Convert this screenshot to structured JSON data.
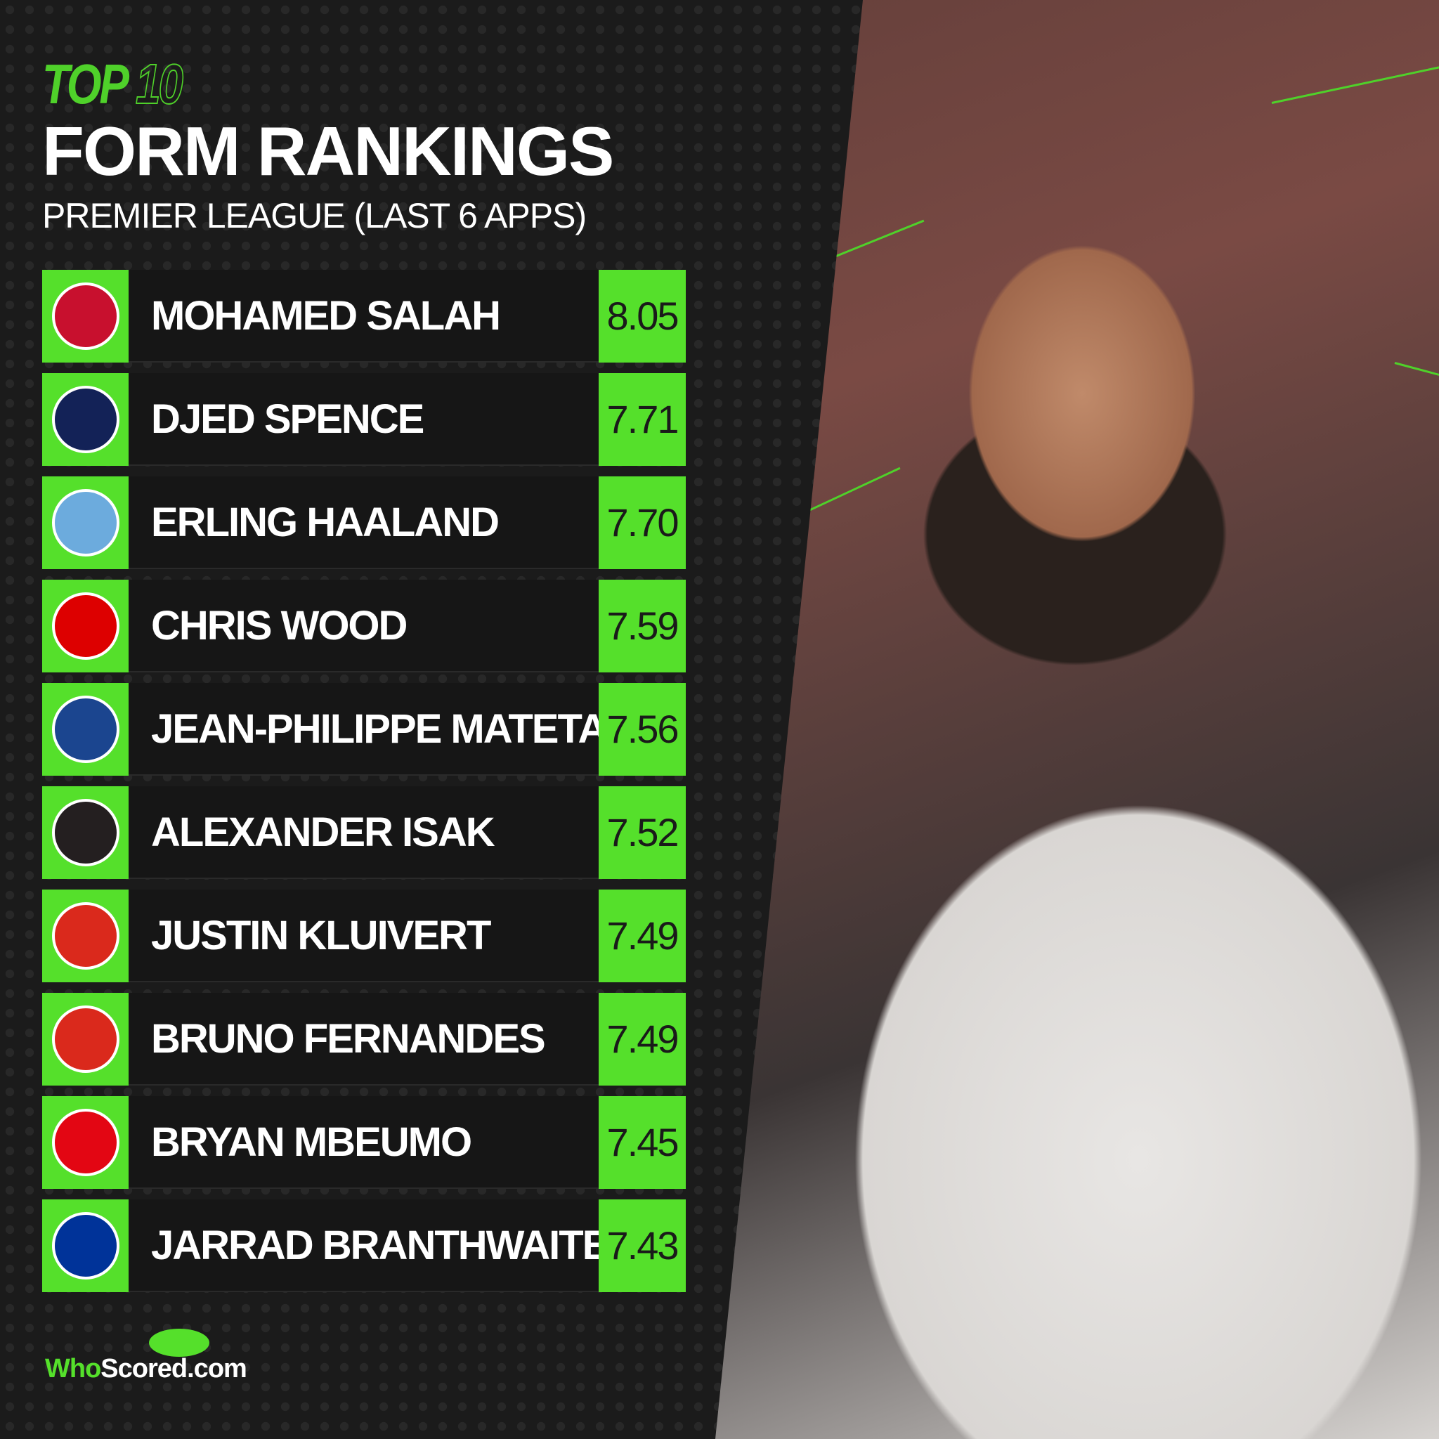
{
  "header": {
    "top": "TOP",
    "ten": "10",
    "title": "FORM RANKINGS",
    "subtitle": "PREMIER LEAGUE (LAST 6 APPS)"
  },
  "accent": "#55e02b",
  "rankings": [
    {
      "name": "MOHAMED SALAH",
      "score": "8.05",
      "crest": "liverpool-crest-icon",
      "crest_color": "#c8102e"
    },
    {
      "name": "DJED SPENCE",
      "score": "7.71",
      "crest": "tottenham-crest-icon",
      "crest_color": "#132257"
    },
    {
      "name": "ERLING HAALAND",
      "score": "7.70",
      "crest": "man-city-crest-icon",
      "crest_color": "#6cabdd"
    },
    {
      "name": "CHRIS WOOD",
      "score": "7.59",
      "crest": "nottingham-forest-crest-icon",
      "crest_color": "#dd0000"
    },
    {
      "name": "JEAN-PHILIPPE MATETA",
      "score": "7.56",
      "crest": "crystal-palace-crest-icon",
      "crest_color": "#1b458f"
    },
    {
      "name": "ALEXANDER ISAK",
      "score": "7.52",
      "crest": "newcastle-crest-icon",
      "crest_color": "#241f20"
    },
    {
      "name": "JUSTIN KLUIVERT",
      "score": "7.49",
      "crest": "bournemouth-crest-icon",
      "crest_color": "#da291c"
    },
    {
      "name": "BRUNO FERNANDES",
      "score": "7.49",
      "crest": "man-united-crest-icon",
      "crest_color": "#da291c"
    },
    {
      "name": "BRYAN MBEUMO",
      "score": "7.45",
      "crest": "brentford-crest-icon",
      "crest_color": "#e30613"
    },
    {
      "name": "JARRAD BRANTHWAITE",
      "score": "7.43",
      "crest": "everton-crest-icon",
      "crest_color": "#003399"
    }
  ],
  "logo": {
    "who": "Who",
    "scored": "Scored",
    "com": ".com"
  }
}
